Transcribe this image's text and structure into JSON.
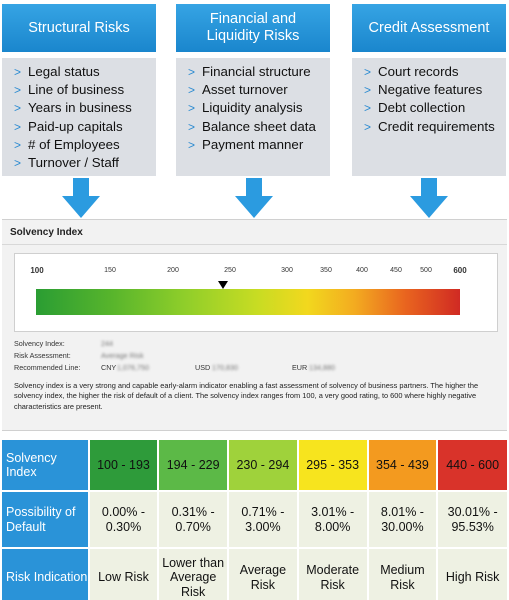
{
  "columns": [
    {
      "title": "Structural Risks",
      "items": [
        "Legal status",
        "Line of business",
        "Years in business",
        "Paid-up capitals",
        "# of Employees",
        "Turnover / Staff"
      ]
    },
    {
      "title": "Financial and Liquidity Risks",
      "items": [
        "Financial structure",
        "Asset turnover",
        "Liquidity analysis",
        "Balance sheet data",
        "Payment manner"
      ]
    },
    {
      "title": "Credit Assessment",
      "items": [
        "Court records",
        "Negative features",
        "Debt collection",
        "Credit requirements"
      ]
    }
  ],
  "panel": {
    "title": "Solvency Index",
    "gauge": {
      "ticks": [
        "100",
        "150",
        "200",
        "250",
        "300",
        "350",
        "400",
        "450",
        "500",
        "600"
      ],
      "pointer_value": 244
    },
    "fields": {
      "solvency_label": "Solvency Index:",
      "solvency_value": "244",
      "risk_label": "Risk Assessment:",
      "risk_value": "Average Risk",
      "line_label": "Recommended Line:",
      "cny_label": "CNY",
      "cny_value": "1,076,750",
      "usd_label": "USD",
      "usd_value": "170,830",
      "eur_label": "EUR",
      "eur_value": "134,880"
    },
    "description": "Solvency index is a very strong and capable early-alarm indicator enabling a fast assessment of solvency of business partners. The higher the solvency index, the higher the risk of default of a client. The solvency index ranges from 100, a very good rating, to 600 where highly negative characteristics are present."
  },
  "table": {
    "row_headers": [
      "Solvency Index",
      "Possibility of Default",
      "Risk Indication"
    ],
    "bands": [
      {
        "range": "100 - 193",
        "default": "0.00% - 0.30%",
        "risk": "Low Risk",
        "color": "#2e9b3a"
      },
      {
        "range": "194 - 229",
        "default": "0.31% - 0.70%",
        "risk": "Lower than Average Risk",
        "color": "#5cb947"
      },
      {
        "range": "230 - 294",
        "default": "0.71% - 3.00%",
        "risk": "Average Risk",
        "color": "#9fd23b"
      },
      {
        "range": "295 - 353",
        "default": "3.01% - 8.00%",
        "risk": "Moderate Risk",
        "color": "#f7e41e"
      },
      {
        "range": "354 - 439",
        "default": "8.01% - 30.00%",
        "risk": "Medium Risk",
        "color": "#f39a1f"
      },
      {
        "range": "440 - 600",
        "default": "30.01% - 95.53%",
        "risk": "High Risk",
        "color": "#d9332a"
      }
    ]
  },
  "colors": {
    "header_blue": "#2a93d8",
    "list_bg": "#dcdfe4",
    "arrow_blue": "#2b9be0"
  }
}
